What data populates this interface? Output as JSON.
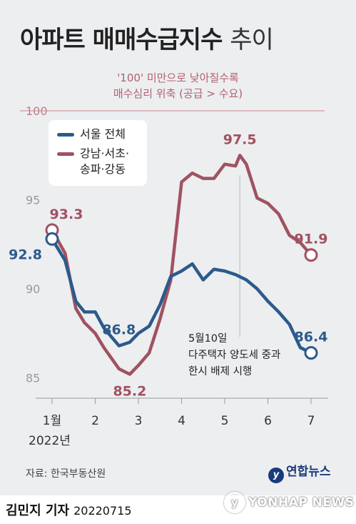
{
  "title": {
    "main": "아파트 매매수급지수",
    "suffix": "추이"
  },
  "note": {
    "line1": "'100' 미만으로 낮아질수록",
    "line2": "매수심리 위축 (공급 > 수요)"
  },
  "legend": {
    "seoul": "서울 전체",
    "gangnam_line1": "강남·서초·",
    "gangnam_line2": "송파·강동"
  },
  "year_label": "2022년",
  "annotation": {
    "line1": "5월10일",
    "line2": "다주택자 양도세 중과",
    "line3": "한시 배제 시행"
  },
  "source": "자료: 한국부동산원",
  "brand": "연합뉴스",
  "footer": {
    "author": "김민지 기자",
    "date": "20220715"
  },
  "watermark": "YONHAP NEWS",
  "colors": {
    "seoul": "#2c5a8c",
    "gangnam": "#a05260",
    "ref_line": "#d49aa4",
    "background": "#eceef0"
  },
  "chart_data": {
    "type": "line",
    "title": "아파트 매매수급지수 추이",
    "xlabel": "2022년",
    "ylabel": "",
    "xlim": [
      1,
      7.2
    ],
    "ylim": [
      85,
      100
    ],
    "yticks": [
      85,
      90,
      95,
      100
    ],
    "xticks": [
      {
        "x": 1,
        "label": "1월"
      },
      {
        "x": 2,
        "label": "2"
      },
      {
        "x": 3,
        "label": "3"
      },
      {
        "x": 4,
        "label": "4"
      },
      {
        "x": 5,
        "label": "5"
      },
      {
        "x": 6,
        "label": "6"
      },
      {
        "x": 7,
        "label": "7"
      }
    ],
    "grid": false,
    "reference_line": 100,
    "event_x": 5.35,
    "series": [
      {
        "name": "서울 전체",
        "color": "#2c5a8c",
        "x": [
          1,
          1.3,
          1.55,
          1.75,
          2.0,
          2.2,
          2.55,
          2.8,
          3.0,
          3.25,
          3.5,
          3.75,
          4.0,
          4.25,
          4.5,
          4.75,
          5.0,
          5.25,
          5.5,
          5.75,
          6.0,
          6.25,
          6.5,
          6.75,
          7.0
        ],
        "y": [
          92.8,
          91.6,
          89.3,
          88.7,
          88.7,
          87.8,
          86.8,
          87.0,
          87.5,
          87.9,
          89.1,
          90.7,
          91.0,
          91.4,
          90.5,
          91.1,
          91.0,
          90.8,
          90.5,
          90.0,
          89.3,
          88.7,
          88.0,
          86.7,
          86.4
        ]
      },
      {
        "name": "강남·서초·송파·강동",
        "color": "#a05260",
        "x": [
          1,
          1.3,
          1.55,
          1.75,
          2.0,
          2.2,
          2.55,
          2.8,
          3.0,
          3.25,
          3.5,
          3.75,
          4.0,
          4.25,
          4.5,
          4.75,
          5.0,
          5.25,
          5.35,
          5.5,
          5.75,
          6.0,
          6.25,
          6.5,
          6.75,
          7.0
        ],
        "y": [
          93.3,
          92.0,
          88.9,
          88.1,
          87.5,
          86.7,
          85.5,
          85.2,
          85.7,
          86.4,
          88.3,
          90.5,
          96.0,
          96.5,
          96.2,
          96.2,
          97.0,
          96.9,
          97.5,
          97.0,
          95.1,
          94.8,
          94.2,
          93.0,
          92.6,
          91.9
        ]
      }
    ],
    "data_labels": [
      {
        "series": 0,
        "x": 1,
        "y": 92.8,
        "text": "92.8",
        "pos": "left"
      },
      {
        "series": 0,
        "x": 2.55,
        "y": 86.8,
        "text": "86.8",
        "pos": "above"
      },
      {
        "series": 0,
        "x": 7.0,
        "y": 86.4,
        "text": "86.4",
        "pos": "above"
      },
      {
        "series": 1,
        "x": 1,
        "y": 93.3,
        "text": "93.3",
        "pos": "above"
      },
      {
        "series": 1,
        "x": 2.8,
        "y": 85.2,
        "text": "85.2",
        "pos": "below"
      },
      {
        "series": 1,
        "x": 5.35,
        "y": 97.5,
        "text": "97.5",
        "pos": "above"
      },
      {
        "series": 1,
        "x": 7.0,
        "y": 91.9,
        "text": "91.9",
        "pos": "above"
      }
    ]
  }
}
